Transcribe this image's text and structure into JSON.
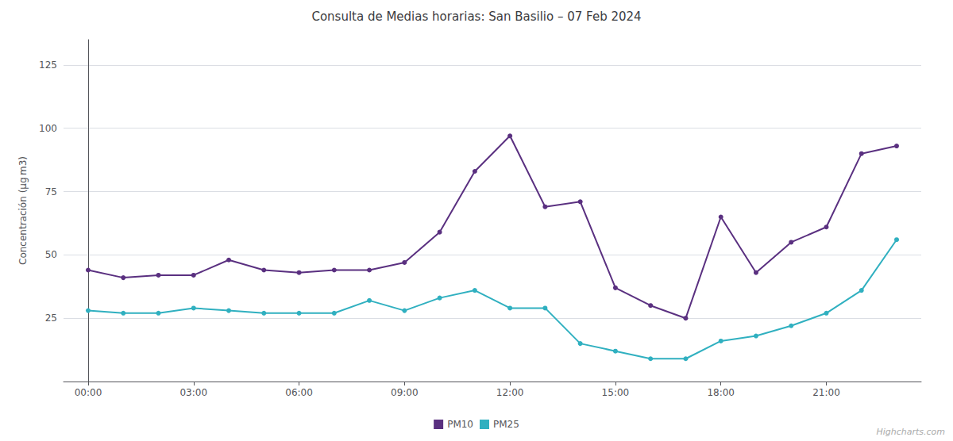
{
  "chart_data": {
    "type": "line",
    "title": "Consulta de Medias horarias: San Basilio – 07 Feb 2024",
    "ylabel": "Concentración (μg m3)",
    "x": [
      0,
      1,
      2,
      3,
      4,
      5,
      6,
      7,
      8,
      9,
      10,
      11,
      12,
      13,
      14,
      15,
      16,
      17,
      18,
      19,
      20,
      21,
      22,
      23
    ],
    "xlim": [
      -0.7,
      23.7
    ],
    "xticks": [
      {
        "value": 0,
        "label": "00:00"
      },
      {
        "value": 3,
        "label": "03:00"
      },
      {
        "value": 6,
        "label": "06:00"
      },
      {
        "value": 9,
        "label": "09:00"
      },
      {
        "value": 12,
        "label": "12:00"
      },
      {
        "value": 15,
        "label": "15:00"
      },
      {
        "value": 18,
        "label": "18:00"
      },
      {
        "value": 21,
        "label": "21:00"
      }
    ],
    "ylim": [
      0,
      135
    ],
    "yticks": [
      25,
      50,
      75,
      100,
      125
    ],
    "grid": true,
    "legend": "bottom",
    "annotations": [
      "Highcharts.com"
    ],
    "series": [
      {
        "name": "PM10",
        "color": "#5a3080",
        "marker": "circle",
        "values": [
          44,
          41,
          42,
          42,
          48,
          44,
          43,
          44,
          44,
          47,
          59,
          83,
          97,
          69,
          71,
          37,
          30,
          25,
          65,
          43,
          55,
          61,
          90,
          93
        ]
      },
      {
        "name": "PM25",
        "color": "#30b0c0",
        "marker": "circle",
        "values": [
          28,
          27,
          27,
          29,
          28,
          27,
          27,
          27,
          32,
          28,
          33,
          36,
          29,
          29,
          15,
          12,
          9,
          9,
          16,
          18,
          22,
          27,
          36,
          56
        ]
      }
    ]
  }
}
